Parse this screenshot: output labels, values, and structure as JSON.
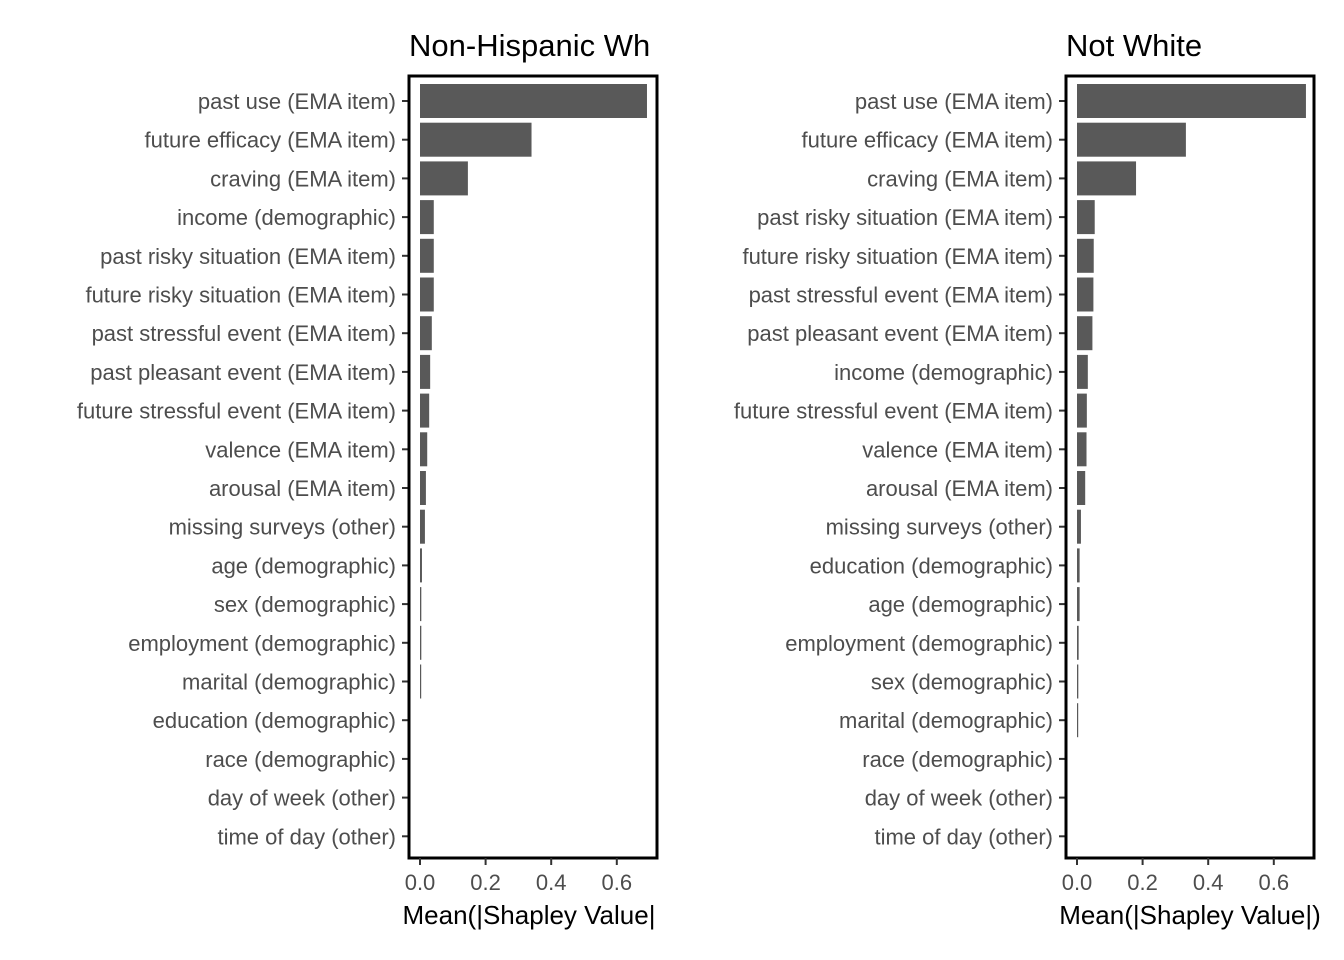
{
  "chart_data": [
    {
      "type": "bar",
      "orientation": "horizontal",
      "title": "Non-Hispanic Wh",
      "xlabel": "Mean(|Shapley Value|",
      "ylabel": "",
      "xlim": [
        0,
        0.73
      ],
      "xticks": [
        0.0,
        0.2,
        0.4,
        0.6
      ],
      "xtick_labels": [
        "0.0",
        "0.2",
        "0.4",
        "0.6"
      ],
      "grid": false,
      "bar_color": "#595959",
      "categories": [
        "past use (EMA item)",
        "future efficacy (EMA item)",
        "craving (EMA item)",
        "income (demographic)",
        "past risky situation (EMA item)",
        "future risky situation (EMA item)",
        "past stressful event (EMA item)",
        "past pleasant event (EMA item)",
        "future stressful event (EMA item)",
        "valence (EMA item)",
        "arousal (EMA item)",
        "missing surveys (other)",
        "age (demographic)",
        "sex (demographic)",
        "employment (demographic)",
        "marital (demographic)",
        "education (demographic)",
        "race (demographic)",
        "day of week (other)",
        "time of day (other)"
      ],
      "values": [
        0.692,
        0.34,
        0.146,
        0.042,
        0.042,
        0.042,
        0.036,
        0.031,
        0.028,
        0.022,
        0.018,
        0.015,
        0.006,
        0.004,
        0.004,
        0.003,
        0.0,
        0.0,
        0.0,
        0.0
      ]
    },
    {
      "type": "bar",
      "orientation": "horizontal",
      "title": "Not White",
      "xlabel": "Mean(|Shapley Value|)",
      "ylabel": "",
      "xlim": [
        0,
        0.73
      ],
      "xticks": [
        0.0,
        0.2,
        0.4,
        0.6
      ],
      "xtick_labels": [
        "0.0",
        "0.2",
        "0.4",
        "0.6"
      ],
      "grid": false,
      "bar_color": "#595959",
      "categories": [
        "past use (EMA item)",
        "future efficacy (EMA item)",
        "craving (EMA item)",
        "past risky situation (EMA item)",
        "future risky situation (EMA item)",
        "past stressful event (EMA item)",
        "past pleasant event (EMA item)",
        "income (demographic)",
        "future stressful event (EMA item)",
        "valence (EMA item)",
        "arousal (EMA item)",
        "missing surveys (other)",
        "education (demographic)",
        "age (demographic)",
        "employment (demographic)",
        "sex (demographic)",
        "marital (demographic)",
        "race (demographic)",
        "day of week (other)",
        "time of day (other)"
      ],
      "values": [
        0.698,
        0.332,
        0.18,
        0.054,
        0.051,
        0.05,
        0.047,
        0.033,
        0.03,
        0.029,
        0.025,
        0.012,
        0.008,
        0.008,
        0.005,
        0.004,
        0.003,
        0.0,
        0.0,
        0.0
      ]
    }
  ]
}
